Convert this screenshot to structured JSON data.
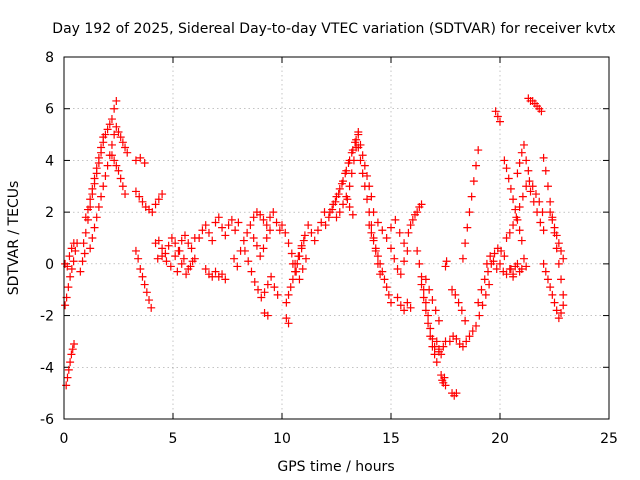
{
  "chart_data": {
    "type": "scatter",
    "title": "Day 192 of 2025, Sidereal Day-to-day VTEC variation (SDTVAR) for receiver kvtx",
    "xlabel": "GPS time / hours",
    "ylabel": "SDTVAR / TECUs",
    "xlim": [
      0,
      25
    ],
    "ylim": [
      -6,
      8
    ],
    "xticks": [
      0,
      5,
      10,
      15,
      20,
      25
    ],
    "yticks": [
      -6,
      -4,
      -2,
      0,
      2,
      4,
      6,
      8
    ],
    "xtick_labels": [
      "0",
      "5",
      "10",
      "15",
      "20",
      "25"
    ],
    "ytick_labels": [
      "-6",
      "-4",
      "-2",
      "0",
      "2",
      "4",
      "6",
      "8"
    ],
    "grid": true,
    "marker": "+",
    "color": "#ff0000",
    "series": [
      {
        "name": "s1",
        "x": [
          0.05,
          0.12,
          0.2,
          0.28,
          0.36,
          0.44,
          0.52,
          0.6
        ],
        "y": [
          -1.6,
          -1.3,
          -0.9,
          -0.5,
          -0.2,
          0.1,
          0.5,
          0.8
        ]
      },
      {
        "name": "s2",
        "x": [
          0.1,
          0.16,
          0.22,
          0.28,
          0.34,
          0.4,
          0.46
        ],
        "y": [
          -4.7,
          -4.4,
          -4.1,
          -3.8,
          -3.5,
          -3.3,
          -3.1
        ]
      },
      {
        "name": "s3",
        "x": [
          0.05,
          0.15,
          0.25,
          0.35,
          0.45
        ],
        "y": [
          0.0,
          -0.1,
          0.3,
          0.6,
          0.8
        ]
      },
      {
        "name": "s4",
        "x": [
          0.75,
          0.85,
          0.95
        ],
        "y": [
          -0.3,
          0.1,
          0.4
        ]
      },
      {
        "name": "s5",
        "x": [
          0.9,
          1.0,
          1.1,
          1.2,
          1.3,
          1.4,
          1.5,
          1.6,
          1.7,
          1.8,
          1.9,
          2.0,
          2.1,
          2.2,
          2.3,
          2.4
        ],
        "y": [
          0.8,
          1.2,
          1.7,
          2.2,
          2.7,
          3.1,
          3.5,
          3.9,
          4.3,
          4.7,
          5.0,
          5.2,
          5.4,
          5.6,
          6.0,
          6.3
        ]
      },
      {
        "name": "s6",
        "x": [
          1.0,
          1.1,
          1.2,
          1.3,
          1.4,
          1.5,
          1.6,
          1.7,
          1.8
        ],
        "y": [
          1.8,
          2.1,
          2.5,
          2.9,
          3.3,
          3.7,
          4.1,
          4.5,
          4.9
        ]
      },
      {
        "name": "s7",
        "x": [
          1.2,
          1.3,
          1.4,
          1.5,
          1.6,
          1.7,
          1.8,
          1.9,
          2.0,
          2.1,
          2.2,
          2.3,
          2.4,
          2.5,
          2.6,
          2.7,
          2.8,
          2.9
        ],
        "y": [
          0.6,
          1.0,
          1.4,
          1.8,
          2.2,
          2.6,
          3.0,
          3.4,
          3.8,
          4.2,
          4.6,
          5.0,
          5.3,
          5.1,
          4.9,
          4.7,
          4.5,
          4.3
        ]
      },
      {
        "name": "s8",
        "x": [
          2.2,
          2.3,
          2.4,
          2.5,
          2.6,
          2.7,
          2.8
        ],
        "y": [
          4.2,
          4.0,
          3.8,
          3.6,
          3.3,
          3.0,
          2.7
        ]
      },
      {
        "name": "s9",
        "x": [
          3.3,
          3.45,
          3.6,
          3.75,
          3.9,
          4.05,
          4.2,
          4.35,
          4.5
        ],
        "y": [
          2.8,
          2.6,
          2.4,
          2.2,
          2.1,
          2.0,
          2.3,
          2.5,
          2.7
        ]
      },
      {
        "name": "s10",
        "x": [
          3.3,
          3.4,
          3.5,
          3.6,
          3.7,
          3.8,
          3.9,
          4.0
        ],
        "y": [
          0.5,
          0.2,
          -0.2,
          -0.5,
          -0.8,
          -1.1,
          -1.4,
          -1.7
        ]
      },
      {
        "name": "s11",
        "x": [
          3.3,
          3.5,
          3.7
        ],
        "y": [
          4.0,
          4.1,
          3.9
        ]
      },
      {
        "name": "s12",
        "x": [
          4.2,
          4.35,
          4.5,
          4.65,
          4.8,
          4.95,
          5.1,
          5.25,
          5.4,
          5.55,
          5.7,
          5.85,
          6.0
        ],
        "y": [
          0.8,
          0.9,
          0.6,
          0.4,
          0.7,
          1.0,
          0.8,
          0.5,
          0.9,
          1.1,
          0.8,
          0.6,
          1.0
        ]
      },
      {
        "name": "s13",
        "x": [
          4.3,
          4.5,
          4.7,
          4.9,
          5.1,
          5.3,
          5.5,
          5.7,
          5.9
        ],
        "y": [
          0.2,
          0.3,
          0.1,
          -0.1,
          0.3,
          0.5,
          0.2,
          -0.2,
          0.1
        ]
      },
      {
        "name": "s14",
        "x": [
          5.2,
          5.4,
          5.6,
          5.8,
          6.0
        ],
        "y": [
          -0.3,
          0.0,
          -0.4,
          -0.1,
          0.2
        ]
      },
      {
        "name": "s15",
        "x": [
          6.2,
          6.35,
          6.5,
          6.65,
          6.8,
          6.95,
          7.1,
          7.25,
          7.4,
          7.55,
          7.7,
          7.85,
          8.0
        ],
        "y": [
          1.0,
          1.3,
          1.5,
          1.2,
          0.9,
          1.6,
          1.8,
          1.4,
          1.1,
          1.5,
          1.7,
          1.3,
          1.6
        ]
      },
      {
        "name": "s16",
        "x": [
          6.5,
          6.65,
          6.8,
          6.95,
          7.1,
          7.25,
          7.4
        ],
        "y": [
          -0.2,
          -0.4,
          -0.5,
          -0.3,
          -0.5,
          -0.4,
          -0.6
        ]
      },
      {
        "name": "s17",
        "x": [
          7.8,
          7.95,
          8.1,
          8.25,
          8.4,
          8.55,
          8.7,
          8.85,
          9.0,
          9.15,
          9.3,
          9.45,
          9.6,
          9.75,
          9.9
        ],
        "y": [
          0.2,
          -0.1,
          0.5,
          0.9,
          1.2,
          1.5,
          1.8,
          2.0,
          1.9,
          1.7,
          1.5,
          1.8,
          2.0,
          1.6,
          1.3
        ]
      },
      {
        "name": "s18",
        "x": [
          8.3,
          8.45,
          8.6,
          8.75,
          8.9,
          9.05,
          9.2,
          9.35,
          9.5,
          9.65,
          9.8
        ],
        "y": [
          0.5,
          0.1,
          -0.3,
          -0.7,
          -1.0,
          -1.3,
          -1.1,
          -0.8,
          -0.5,
          -0.9,
          -1.2
        ]
      },
      {
        "name": "s19",
        "x": [
          8.7,
          8.85,
          9.0,
          9.15,
          9.3,
          9.45
        ],
        "y": [
          1.0,
          0.7,
          0.3,
          0.6,
          1.0,
          1.3
        ]
      },
      {
        "name": "s20",
        "x": [
          9.2,
          9.35
        ],
        "y": [
          -1.9,
          -2.0
        ]
      },
      {
        "name": "s21",
        "x": [
          10.0,
          10.15,
          10.3,
          10.45,
          10.6,
          10.75,
          10.9,
          11.05,
          11.2,
          11.35,
          11.5,
          11.65,
          11.8,
          11.95
        ],
        "y": [
          1.5,
          1.2,
          0.8,
          0.4,
          0.0,
          0.3,
          0.7,
          1.1,
          1.5,
          1.2,
          0.9,
          1.3,
          1.6,
          2.0
        ]
      },
      {
        "name": "s22",
        "x": [
          10.2,
          10.3,
          10.4,
          10.5,
          10.6,
          10.7,
          10.8,
          10.9,
          11.0
        ],
        "y": [
          -1.5,
          -1.2,
          -0.9,
          -0.6,
          -0.3,
          0.0,
          0.3,
          0.6,
          0.9
        ]
      },
      {
        "name": "s23",
        "x": [
          10.2,
          10.3
        ],
        "y": [
          -2.1,
          -2.3
        ]
      },
      {
        "name": "s24",
        "x": [
          10.5,
          10.65,
          10.8,
          10.95,
          11.1
        ],
        "y": [
          0.0,
          -0.3,
          -0.6,
          -0.2,
          0.2
        ]
      },
      {
        "name": "s25",
        "x": [
          12.0,
          12.15,
          12.3,
          12.45,
          12.6,
          12.75,
          12.9,
          13.05,
          13.2,
          13.35,
          13.5
        ],
        "y": [
          1.5,
          1.8,
          2.1,
          2.4,
          2.7,
          3.1,
          3.5,
          3.9,
          4.3,
          4.7,
          5.1
        ]
      },
      {
        "name": "s26",
        "x": [
          12.2,
          12.35,
          12.5,
          12.65,
          12.8,
          12.95,
          13.1,
          13.25,
          13.4
        ],
        "y": [
          2.0,
          2.3,
          2.6,
          2.9,
          3.2,
          3.6,
          4.0,
          4.4,
          4.8
        ]
      },
      {
        "name": "s27",
        "x": [
          12.5,
          12.65,
          12.8,
          12.95,
          13.1,
          13.25
        ],
        "y": [
          1.8,
          2.0,
          2.3,
          2.6,
          2.2,
          1.9
        ]
      },
      {
        "name": "s28",
        "x": [
          13.0,
          13.1,
          13.2,
          13.3,
          13.4,
          13.5
        ],
        "y": [
          2.5,
          3.0,
          3.5,
          4.0,
          4.5,
          5.0
        ]
      },
      {
        "name": "s29",
        "x": [
          13.5,
          13.6,
          13.7,
          13.8,
          13.9,
          14.0,
          14.1,
          14.2,
          14.3,
          14.4,
          14.5
        ],
        "y": [
          4.5,
          4.0,
          3.5,
          3.0,
          2.5,
          2.0,
          1.5,
          1.0,
          0.5,
          0.0,
          -0.4
        ]
      },
      {
        "name": "s30",
        "x": [
          13.6,
          13.7,
          13.8,
          13.9,
          14.0,
          14.1
        ],
        "y": [
          4.6,
          4.2,
          3.8,
          3.4,
          3.0,
          2.6
        ]
      },
      {
        "name": "s31",
        "x": [
          14.0,
          14.1,
          14.2,
          14.3,
          14.4,
          14.5,
          14.6,
          14.7,
          14.8,
          14.9,
          15.0
        ],
        "y": [
          1.5,
          1.2,
          0.9,
          0.6,
          0.3,
          0.0,
          -0.3,
          -0.6,
          -0.9,
          -1.2,
          -1.5
        ]
      },
      {
        "name": "s32",
        "x": [
          14.2,
          14.4,
          14.6,
          14.8,
          15.0,
          15.2,
          15.4,
          15.6
        ],
        "y": [
          2.0,
          1.6,
          1.3,
          1.0,
          1.4,
          1.7,
          1.2,
          0.8
        ]
      },
      {
        "name": "s33",
        "x": [
          15.0,
          15.15,
          15.3,
          15.45,
          15.6,
          15.75
        ],
        "y": [
          0.6,
          0.2,
          -0.2,
          -0.4,
          0.1,
          0.5
        ]
      },
      {
        "name": "s34",
        "x": [
          15.3,
          15.45,
          15.6,
          15.75,
          15.9
        ],
        "y": [
          -1.3,
          -1.6,
          -1.8,
          -1.5,
          -1.7
        ]
      },
      {
        "name": "s35",
        "x": [
          15.8,
          15.9,
          16.0,
          16.1,
          16.2,
          16.3,
          16.4
        ],
        "y": [
          1.2,
          1.5,
          1.7,
          1.9,
          2.0,
          2.2,
          2.3
        ]
      },
      {
        "name": "s36",
        "x": [
          16.2,
          16.3,
          16.4,
          16.5,
          16.6,
          16.7,
          16.8,
          16.9,
          17.0,
          17.1,
          17.2,
          17.3,
          17.4,
          17.5
        ],
        "y": [
          0.5,
          0.0,
          -0.5,
          -1.0,
          -1.5,
          -2.0,
          -2.5,
          -2.9,
          -3.2,
          -3.0,
          -3.3,
          -3.5,
          -3.2,
          -3.0
        ]
      },
      {
        "name": "s37",
        "x": [
          16.4,
          16.5,
          16.6,
          16.7,
          16.8,
          16.9,
          17.0,
          17.1,
          17.2
        ],
        "y": [
          -0.8,
          -1.3,
          -1.8,
          -2.3,
          -2.8,
          -3.2,
          -3.5,
          -3.8,
          -3.4
        ]
      },
      {
        "name": "s38",
        "x": [
          16.6,
          16.75,
          16.9,
          17.05,
          17.2
        ],
        "y": [
          -0.6,
          -1.0,
          -1.4,
          -1.8,
          -2.2
        ]
      },
      {
        "name": "s39",
        "x": [
          17.3,
          17.35,
          17.4,
          17.45,
          17.5
        ],
        "y": [
          -4.3,
          -4.5,
          -4.6,
          -4.4,
          -4.7
        ]
      },
      {
        "name": "s40",
        "x": [
          17.5,
          17.55
        ],
        "y": [
          -0.1,
          0.1
        ]
      },
      {
        "name": "s41",
        "x": [
          17.8,
          17.9,
          18.0
        ],
        "y": [
          -5.0,
          -5.1,
          -5.0
        ]
      },
      {
        "name": "s42",
        "x": [
          17.7,
          17.85,
          18.0,
          18.15,
          18.3,
          18.45,
          18.6,
          18.75,
          18.9,
          19.05,
          19.2,
          19.35,
          19.5
        ],
        "y": [
          -3.0,
          -2.8,
          -2.9,
          -3.1,
          -3.2,
          -3.0,
          -2.8,
          -2.6,
          -2.4,
          -2.0,
          -1.6,
          -1.2,
          -0.8
        ]
      },
      {
        "name": "s43",
        "x": [
          17.8,
          17.95,
          18.1,
          18.25,
          18.4
        ],
        "y": [
          -1.0,
          -1.2,
          -1.5,
          -1.8,
          -2.2
        ]
      },
      {
        "name": "s44",
        "x": [
          18.3,
          18.4,
          18.5,
          18.6,
          18.7,
          18.8,
          18.9,
          19.0
        ],
        "y": [
          0.2,
          0.8,
          1.4,
          2.0,
          2.6,
          3.2,
          3.8,
          4.4
        ]
      },
      {
        "name": "s45",
        "x": [
          19.0,
          19.15,
          19.3,
          19.45,
          19.6,
          19.75,
          19.9,
          20.05,
          20.2
        ],
        "y": [
          -1.5,
          -1.0,
          -0.6,
          -0.3,
          0.0,
          0.4,
          0.6,
          0.5,
          0.3
        ]
      },
      {
        "name": "s46",
        "x": [
          19.4,
          19.55,
          19.7,
          19.85,
          20.0,
          20.15,
          20.3,
          20.45,
          20.6
        ],
        "y": [
          0.0,
          0.3,
          0.1,
          -0.2,
          0.0,
          -0.3,
          -0.4,
          -0.2,
          -0.5
        ]
      },
      {
        "name": "s47",
        "x": [
          19.8,
          19.9,
          20.0
        ],
        "y": [
          5.9,
          5.7,
          5.5
        ]
      },
      {
        "name": "s48",
        "x": [
          20.2,
          20.3,
          20.4,
          20.5,
          20.6,
          20.7,
          20.8,
          20.9,
          21.0
        ],
        "y": [
          4.0,
          3.7,
          3.3,
          2.9,
          2.5,
          2.1,
          1.7,
          1.3,
          0.9
        ]
      },
      {
        "name": "s49",
        "x": [
          20.3,
          20.45,
          20.6,
          20.75,
          20.9,
          21.05,
          21.2,
          21.35,
          21.5,
          21.65,
          21.8,
          21.95
        ],
        "y": [
          1.0,
          1.2,
          1.5,
          1.8,
          2.2,
          2.6,
          3.0,
          3.2,
          3.0,
          2.7,
          2.4,
          2.0
        ]
      },
      {
        "name": "s50",
        "x": [
          20.5,
          20.6,
          20.7,
          20.8,
          20.9,
          21.0,
          21.1,
          21.2
        ],
        "y": [
          -0.2,
          -0.4,
          -0.1,
          0.0,
          -0.3,
          -0.2,
          0.2,
          -0.1
        ]
      },
      {
        "name": "s51",
        "x": [
          20.8,
          20.9,
          21.0,
          21.1,
          21.2,
          21.3
        ],
        "y": [
          3.5,
          3.9,
          4.3,
          4.6,
          4.0,
          3.6
        ]
      },
      {
        "name": "s52",
        "x": [
          21.3,
          21.4,
          21.5,
          21.6,
          21.7,
          21.8,
          21.9
        ],
        "y": [
          6.4,
          6.3,
          6.3,
          6.2,
          6.1,
          6.0,
          5.9
        ]
      },
      {
        "name": "s53",
        "x": [
          21.4,
          21.55,
          21.7,
          21.85,
          22.0
        ],
        "y": [
          2.8,
          2.4,
          2.0,
          1.6,
          1.3
        ]
      },
      {
        "name": "s54",
        "x": [
          22.0,
          22.1,
          22.2,
          22.3,
          22.4,
          22.5,
          22.6,
          22.7,
          22.8,
          22.9
        ],
        "y": [
          4.1,
          3.6,
          3.0,
          2.4,
          1.8,
          1.2,
          0.6,
          0.0,
          -0.6,
          -1.2
        ]
      },
      {
        "name": "s55",
        "x": [
          22.0,
          22.1,
          22.2,
          22.3,
          22.4,
          22.5,
          22.6,
          22.7,
          22.8,
          22.9
        ],
        "y": [
          0.0,
          -0.3,
          -0.6,
          -0.9,
          -1.2,
          -1.5,
          -1.8,
          -2.1,
          -1.9,
          -1.6
        ]
      },
      {
        "name": "s56",
        "x": [
          22.3,
          22.4,
          22.5,
          22.6,
          22.7,
          22.8,
          22.9
        ],
        "y": [
          2.0,
          1.7,
          1.4,
          1.1,
          0.8,
          0.5,
          0.2
        ]
      }
    ]
  }
}
